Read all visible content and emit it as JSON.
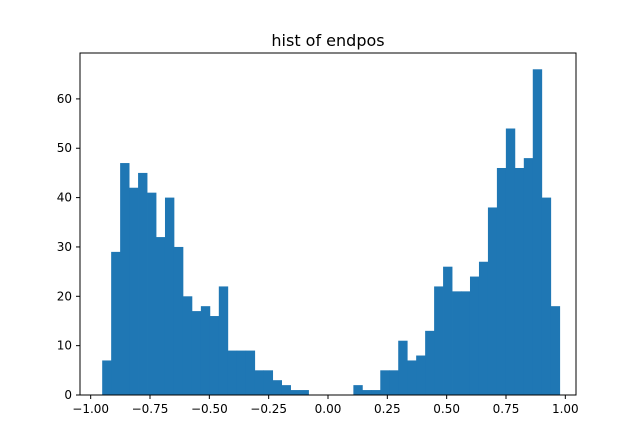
{
  "chart_data": {
    "type": "bar",
    "title": "hist of endpos",
    "xlabel": "",
    "ylabel": "",
    "xlim": [
      -1.045,
      1.045
    ],
    "ylim": [
      0,
      69.3
    ],
    "x_ticks": [
      -1.0,
      -0.75,
      -0.5,
      -0.25,
      0.0,
      0.25,
      0.5,
      0.75,
      1.0
    ],
    "x_tick_labels": [
      "−1.00",
      "−0.75",
      "−0.50",
      "−0.25",
      "0.00",
      "0.25",
      "0.50",
      "0.75",
      "1.00"
    ],
    "y_ticks": [
      0,
      10,
      20,
      30,
      40,
      50,
      60
    ],
    "y_tick_labels": [
      "0",
      "10",
      "20",
      "30",
      "40",
      "50",
      "60"
    ],
    "grid": false,
    "bin_start": -0.9515,
    "bin_width": 0.0378,
    "values": [
      7,
      29,
      47,
      42,
      45,
      41,
      32,
      40,
      30,
      20,
      17,
      18,
      16,
      22,
      9,
      9,
      9,
      5,
      5,
      3,
      2,
      1,
      1,
      0,
      0,
      0,
      0,
      0,
      2,
      1,
      1,
      5,
      5,
      11,
      7,
      8,
      13,
      22,
      26,
      21,
      21,
      24,
      27,
      38,
      46,
      54,
      46,
      48,
      66,
      40,
      18
    ],
    "bar_color": "#1f77b4"
  }
}
